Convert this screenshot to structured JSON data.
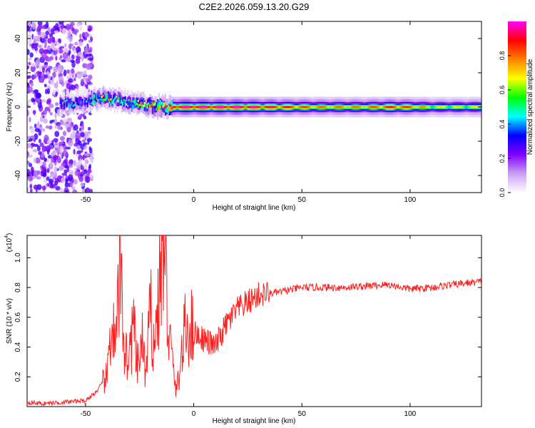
{
  "title": "C2E2.2026.059.13.20.G29",
  "chart_data": [
    {
      "type": "heatmap",
      "xlabel": "Height of straight line (km)",
      "ylabel": "Frequency (Hz)",
      "xlim": [
        -77,
        133
      ],
      "ylim": [
        -50,
        50
      ],
      "xticks": [
        -50,
        0,
        50,
        100
      ],
      "yticks": [
        -40,
        -20,
        0,
        20,
        40
      ],
      "grid": false,
      "colorbar": {
        "label": "Normalized spectral amplitude",
        "range": [
          0,
          1
        ],
        "ticks": [
          "0.0",
          "0.2",
          "0.4",
          "0.6",
          "0.8"
        ],
        "colormap": [
          "#ffffff",
          "#c8a0f0",
          "#8000ff",
          "#0000ff",
          "#00ffff",
          "#00ff00",
          "#ffff00",
          "#ff8000",
          "#ff0000",
          "#ff00ff"
        ]
      },
      "ridge": {
        "description_points_x": [
          -60,
          -50,
          -45,
          -40,
          -35,
          -30,
          -25,
          -20,
          -15,
          -10,
          0,
          20,
          40,
          60,
          80,
          90,
          100,
          110,
          133
        ],
        "center_freq": [
          2,
          3,
          5,
          5,
          4,
          2,
          2,
          1,
          0,
          0,
          0,
          0,
          0,
          0,
          0,
          0,
          0,
          0,
          0
        ],
        "peak_amplitude": [
          0.5,
          0.4,
          0.6,
          0.7,
          0.6,
          0.6,
          0.7,
          0.8,
          0.85,
          0.9,
          0.9,
          0.9,
          0.8,
          0.7,
          0.7,
          0.8,
          0.75,
          0.6,
          0.6
        ]
      }
    },
    {
      "type": "line",
      "xlabel": "Height of straight line (km)",
      "ylabel": "SNR (10 * v/v)",
      "multiplier_label": "(x10",
      "multiplier_exp": "4",
      "multiplier_close": ")",
      "xlim": [
        -77,
        133
      ],
      "ylim": [
        0,
        1.15
      ],
      "xticks": [
        -50,
        0,
        50,
        100
      ],
      "yticks": [
        "0.2",
        "0.4",
        "0.6",
        "0.8",
        "1.0"
      ],
      "ytick_values": [
        0.2,
        0.4,
        0.6,
        0.8,
        1.0
      ],
      "grid": false,
      "series": [
        {
          "color": "#ff2020",
          "x": [
            -77,
            -70,
            -60,
            -50,
            -45,
            -40,
            -38,
            -36,
            -34,
            -32,
            -30,
            -28,
            -26,
            -24,
            -22,
            -20,
            -18,
            -16,
            -14,
            -12,
            -10,
            -8,
            -6,
            -4,
            -2,
            0,
            5,
            10,
            15,
            20,
            25,
            30,
            40,
            50,
            60,
            70,
            80,
            90,
            100,
            110,
            120,
            133
          ],
          "y": [
            0.03,
            0.02,
            0.03,
            0.04,
            0.1,
            0.2,
            0.6,
            0.35,
            0.98,
            0.4,
            0.3,
            0.55,
            0.25,
            0.45,
            0.2,
            0.65,
            0.4,
            0.8,
            1.15,
            0.6,
            0.3,
            0.1,
            0.3,
            0.5,
            0.55,
            0.5,
            0.45,
            0.4,
            0.55,
            0.65,
            0.7,
            0.75,
            0.77,
            0.8,
            0.8,
            0.8,
            0.81,
            0.82,
            0.79,
            0.8,
            0.82,
            0.84
          ]
        }
      ]
    }
  ]
}
